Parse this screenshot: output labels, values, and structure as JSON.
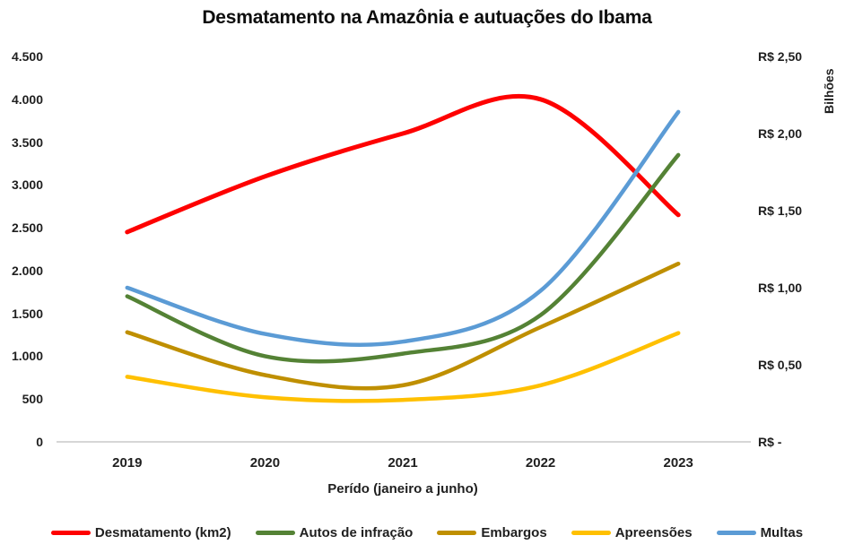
{
  "chart_data": {
    "type": "line",
    "title": "Desmatamento na Amazônia e autuações do Ibama",
    "categories": [
      "2019",
      "2020",
      "2021",
      "2022",
      "2023"
    ],
    "x_axis_label": "Perído (janeiro a junho)",
    "grid": "zero-baseline-only",
    "legend_position": "bottom",
    "left_axis": {
      "min": 0,
      "max": 4500,
      "tick_step": 500,
      "ticks_top_to_bottom": [
        "4.500",
        "4.000",
        "3.500",
        "3.000",
        "2.500",
        "2.000",
        "1.500",
        "1.000",
        "500",
        "0"
      ]
    },
    "right_axis": {
      "title": "Bilhões",
      "min": 0,
      "max": 2.5,
      "tick_step": 0.5,
      "ticks_top_to_bottom": [
        "R$ 2,50",
        "R$ 2,00",
        "R$ 1,50",
        "R$ 1,00",
        "R$ 0,50",
        "R$ -"
      ]
    },
    "series": [
      {
        "name": "Desmatamento (km2)",
        "axis": "left",
        "color": "#FE0000",
        "stroke_width": 5,
        "values": [
          2450,
          3100,
          3600,
          4000,
          2650
        ]
      },
      {
        "name": "Autos de infração",
        "axis": "left",
        "color": "#548235",
        "stroke_width": 4.5,
        "values": [
          1700,
          1000,
          1030,
          1480,
          3350
        ]
      },
      {
        "name": "Embargos",
        "axis": "left",
        "color": "#BF8F00",
        "stroke_width": 4.5,
        "values": [
          1280,
          780,
          660,
          1340,
          2080
        ]
      },
      {
        "name": "Apreensões",
        "axis": "left",
        "color": "#FFC000",
        "stroke_width": 4.5,
        "values": [
          760,
          520,
          490,
          660,
          1270
        ]
      },
      {
        "name": "Multas",
        "axis": "right",
        "color": "#5B9BD5",
        "stroke_width": 4.5,
        "values": [
          1.0,
          0.7,
          0.65,
          0.98,
          2.14
        ]
      }
    ],
    "colors": {
      "baseline_gridline": "#D6D6D6",
      "text": "#1f1f1f"
    }
  }
}
